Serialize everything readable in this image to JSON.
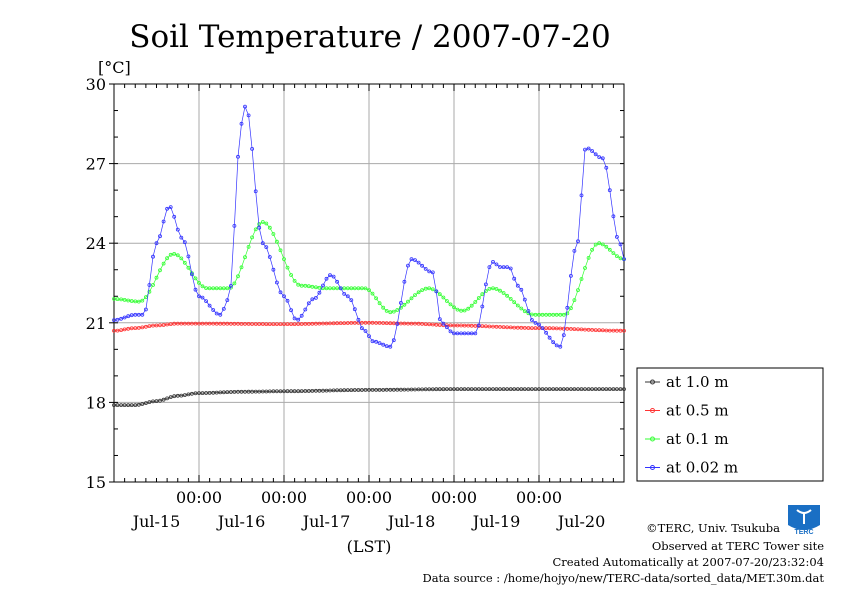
{
  "chart_data": {
    "type": "line",
    "title": "Soil Temperature / 2007-07-20",
    "ylabel": "[°C]",
    "xlabel": "(LST)",
    "ylim": [
      15,
      30
    ],
    "yticks": [
      15,
      18,
      21,
      24,
      27,
      30
    ],
    "xlim_days": [
      0,
      6
    ],
    "x_start": "2007-07-14 00:00",
    "x_end": "2007-07-20 24:00",
    "xticks": [
      {
        "hour_label": "00:00",
        "day_label": "Jul-15"
      },
      {
        "hour_label": "00:00",
        "day_label": "Jul-16"
      },
      {
        "hour_label": "00:00",
        "day_label": "Jul-17"
      },
      {
        "hour_label": "00:00",
        "day_label": "Jul-18"
      },
      {
        "hour_label": "00:00",
        "day_label": "Jul-19"
      },
      {
        "hour_label": "00:00",
        "day_label": "Jul-20"
      }
    ],
    "grid": true,
    "legend_position": "right",
    "series": [
      {
        "name": "at 1.0 m",
        "color": "#333333",
        "x": [
          0,
          0.25,
          0.5,
          0.75,
          1.0,
          1.5,
          2.0,
          3.0,
          4.0,
          5.0,
          6.0
        ],
        "y": [
          17.9,
          17.9,
          18.05,
          18.25,
          18.35,
          18.4,
          18.42,
          18.47,
          18.5,
          18.5,
          18.5
        ]
      },
      {
        "name": "at 0.5 m",
        "color": "#ff3333",
        "x": [
          0,
          0.25,
          0.5,
          0.75,
          1.0,
          2.0,
          3.0,
          3.5,
          4.0,
          5.0,
          6.0
        ],
        "y": [
          20.7,
          20.8,
          20.9,
          20.97,
          20.97,
          20.95,
          21.0,
          20.97,
          20.9,
          20.8,
          20.7
        ]
      },
      {
        "name": "at 0.1 m",
        "color": "#33ff33",
        "x": [
          0,
          0.3,
          0.7,
          1.1,
          1.35,
          1.75,
          2.2,
          2.5,
          2.95,
          3.25,
          3.7,
          4.1,
          4.45,
          4.95,
          5.3,
          5.7,
          6.0
        ],
        "y": [
          21.9,
          21.8,
          23.6,
          22.3,
          22.3,
          24.8,
          22.4,
          22.3,
          22.3,
          21.4,
          22.3,
          21.45,
          22.3,
          21.3,
          21.3,
          24.0,
          23.4
        ]
      },
      {
        "name": "at 0.02 m",
        "color": "#3333ff",
        "x": [
          0,
          0.25,
          0.35,
          0.5,
          0.65,
          0.8,
          1.0,
          1.25,
          1.35,
          1.5,
          1.55,
          1.75,
          2.0,
          2.15,
          2.35,
          2.55,
          2.75,
          2.95,
          3.05,
          3.25,
          3.5,
          3.75,
          3.85,
          4.0,
          4.25,
          4.45,
          4.55,
          4.65,
          4.75,
          4.95,
          5.25,
          5.45,
          5.55,
          5.75,
          5.95,
          6.0
        ],
        "y": [
          21.1,
          21.3,
          21.3,
          24.0,
          25.4,
          24.2,
          22.0,
          21.3,
          21.9,
          28.5,
          29.2,
          24.0,
          22.0,
          21.1,
          21.9,
          22.8,
          22.0,
          20.7,
          20.3,
          20.1,
          23.4,
          22.9,
          21.0,
          20.6,
          20.6,
          23.3,
          23.1,
          23.1,
          22.4,
          21.0,
          20.1,
          24.0,
          27.6,
          27.2,
          24.0,
          23.4
        ]
      }
    ]
  },
  "footer": {
    "copyright": "©TERC, Univ. Tsukuba",
    "observed": "Observed at TERC Tower site",
    "created": "Created Automatically at 2007-07-20/23:32:04",
    "source": "Data source : /home/hojyo/new/TERC-data/sorted_data/MET.30m.dat"
  },
  "logo": {
    "text": "TERC",
    "color": "#1a6fc4"
  }
}
